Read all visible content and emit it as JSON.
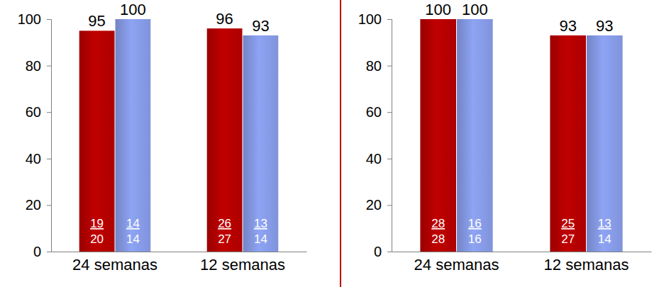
{
  "chart_data": [
    {
      "type": "bar",
      "categories": [
        "24 semanas",
        "12 semanas"
      ],
      "series": [
        {
          "color": "#c00000",
          "values": [
            95,
            96
          ],
          "counts": [
            19,
            26
          ],
          "totals": [
            20,
            27
          ]
        },
        {
          "color": "#8ea4f4",
          "values": [
            100,
            93
          ],
          "counts": [
            14,
            13
          ],
          "totals": [
            14,
            14
          ]
        }
      ],
      "ylim": [
        0,
        100
      ],
      "yticks": [
        0,
        20,
        40,
        60,
        80,
        100
      ],
      "data_labels": true,
      "grid": false
    },
    {
      "type": "bar",
      "categories": [
        "24 semanas",
        "12 semanas"
      ],
      "series": [
        {
          "color": "#c00000",
          "values": [
            100,
            93
          ],
          "counts": [
            28,
            25
          ],
          "totals": [
            28,
            27
          ]
        },
        {
          "color": "#8ea4f4",
          "values": [
            100,
            93
          ],
          "counts": [
            16,
            13
          ],
          "totals": [
            16,
            14
          ]
        }
      ],
      "ylim": [
        0,
        100
      ],
      "yticks": [
        0,
        20,
        40,
        60,
        80,
        100
      ],
      "data_labels": true,
      "grid": false
    }
  ]
}
